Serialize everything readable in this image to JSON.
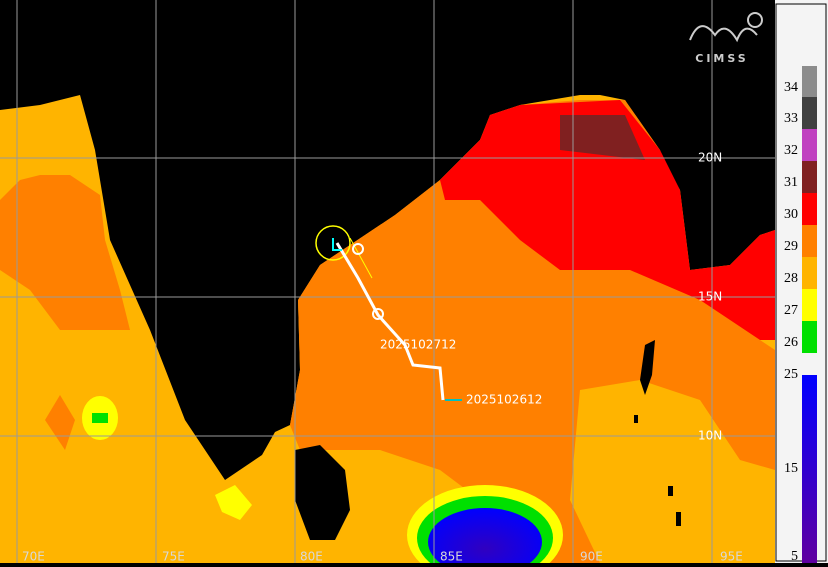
{
  "map": {
    "logo": "CIMSS",
    "longitude_labels": [
      "70E",
      "75E",
      "80E",
      "85E",
      "90E",
      "95E"
    ],
    "latitude_labels": [
      "20N",
      "15N",
      "10N"
    ],
    "track_labels": [
      "2025102712",
      "2025102612"
    ],
    "colorbar": {
      "ticks": [
        34,
        33,
        32,
        31,
        30,
        29,
        28,
        27,
        26,
        25,
        15,
        5
      ],
      "colors": [
        "#8c8c8c",
        "#404040",
        "#c040c0",
        "#802020",
        "#ff0000",
        "#ff8000",
        "#ffb400",
        "#ffff00",
        "#00e000"
      ]
    }
  }
}
